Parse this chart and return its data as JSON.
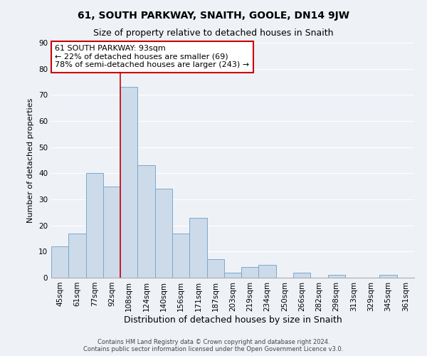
{
  "title": "61, SOUTH PARKWAY, SNAITH, GOOLE, DN14 9JW",
  "subtitle": "Size of property relative to detached houses in Snaith",
  "xlabel": "Distribution of detached houses by size in Snaith",
  "ylabel": "Number of detached properties",
  "bar_labels": [
    "45sqm",
    "61sqm",
    "77sqm",
    "92sqm",
    "108sqm",
    "124sqm",
    "140sqm",
    "156sqm",
    "171sqm",
    "187sqm",
    "203sqm",
    "219sqm",
    "234sqm",
    "250sqm",
    "266sqm",
    "282sqm",
    "298sqm",
    "313sqm",
    "329sqm",
    "345sqm",
    "361sqm"
  ],
  "bar_values": [
    12,
    17,
    40,
    35,
    73,
    43,
    34,
    17,
    23,
    7,
    2,
    4,
    5,
    0,
    2,
    0,
    1,
    0,
    0,
    1,
    0
  ],
  "bar_color": "#ccdaea",
  "bar_edge_color": "#7aaac8",
  "ylim": [
    0,
    90
  ],
  "yticks": [
    0,
    10,
    20,
    30,
    40,
    50,
    60,
    70,
    80,
    90
  ],
  "annotation_title": "61 SOUTH PARKWAY: 93sqm",
  "annotation_line1": "← 22% of detached houses are smaller (69)",
  "annotation_line2": "78% of semi-detached houses are larger (243) →",
  "annotation_box_color": "#ffffff",
  "annotation_box_edge": "#cc0000",
  "property_line_color": "#cc0000",
  "property_line_index": 3,
  "footer1": "Contains HM Land Registry data © Crown copyright and database right 2024.",
  "footer2": "Contains public sector information licensed under the Open Government Licence v3.0.",
  "background_color": "#eef2f7",
  "plot_background_color": "#eef2f7",
  "grid_color": "#ffffff",
  "title_fontsize": 10,
  "subtitle_fontsize": 9,
  "xlabel_fontsize": 9,
  "ylabel_fontsize": 8,
  "tick_fontsize": 7.5,
  "annotation_fontsize": 8
}
